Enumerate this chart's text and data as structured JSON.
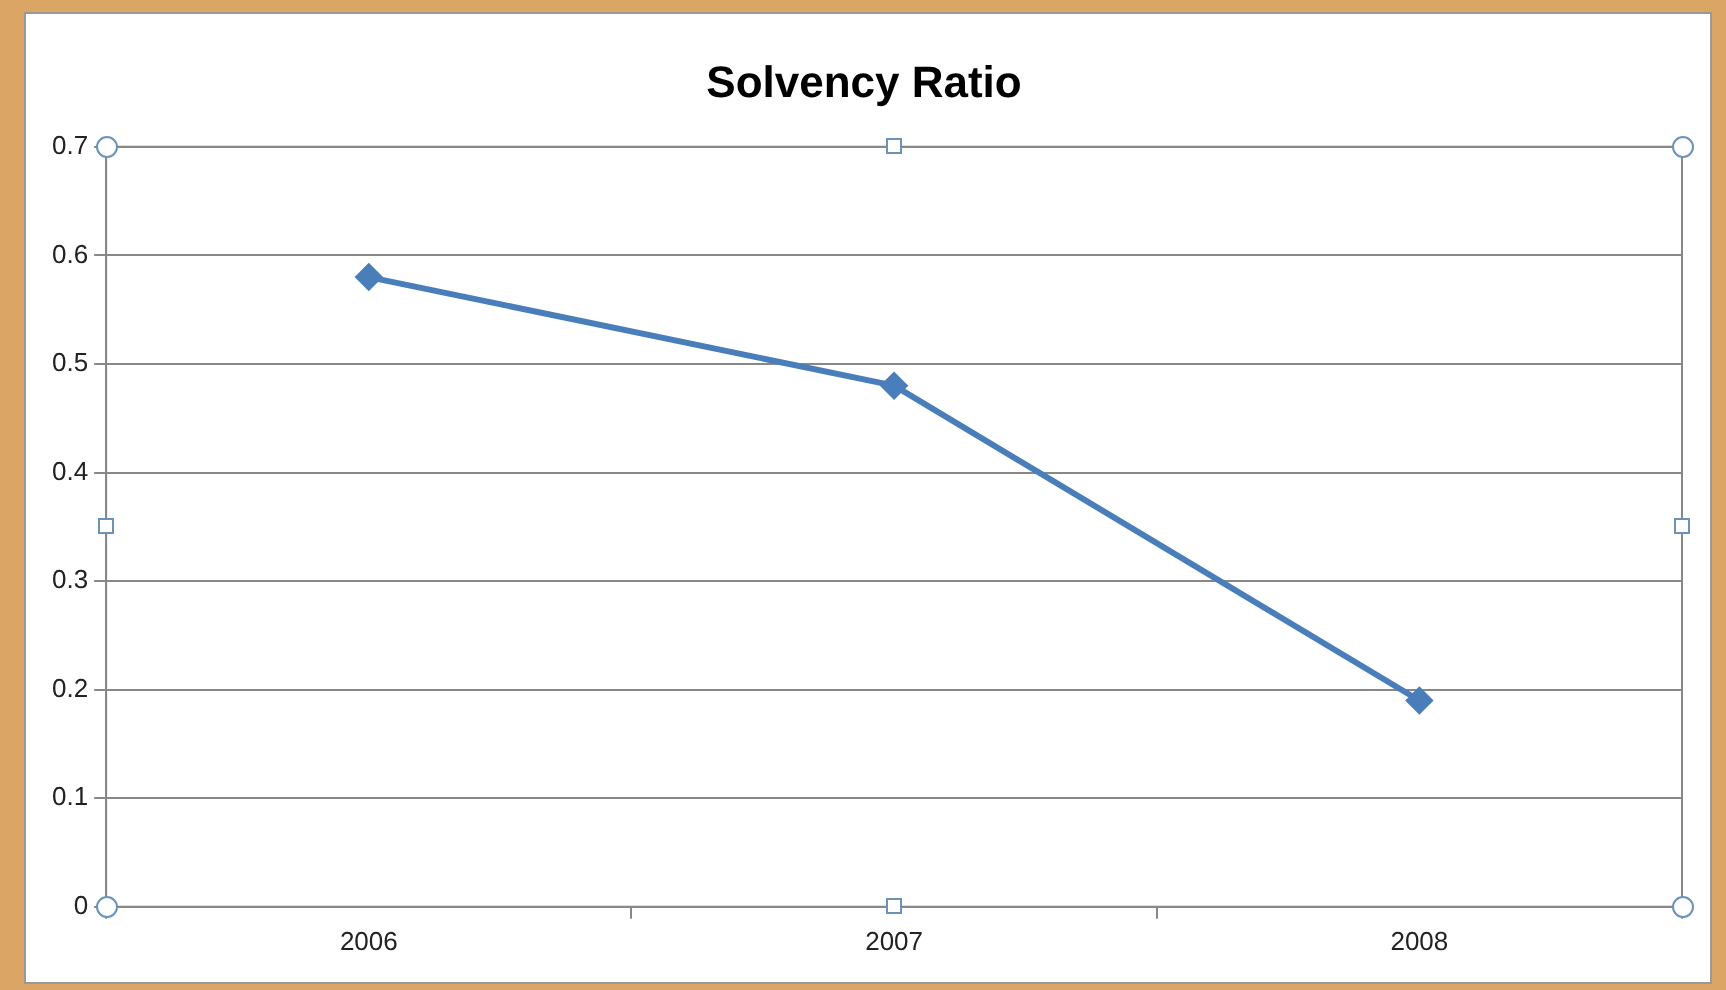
{
  "chart_data": {
    "type": "line",
    "title": "Solvency Ratio",
    "categories": [
      "2006",
      "2007",
      "2008"
    ],
    "series": [
      {
        "color": "#4a7ebb",
        "values": [
          0.58,
          0.48,
          0.19
        ]
      }
    ],
    "ylim": [
      0,
      0.7
    ],
    "yticks": [
      0,
      0.1,
      0.2,
      0.3,
      0.4,
      0.5,
      0.6,
      0.7
    ],
    "grid": "y",
    "legend": false,
    "marker": "diamond",
    "line_style": "solid"
  }
}
